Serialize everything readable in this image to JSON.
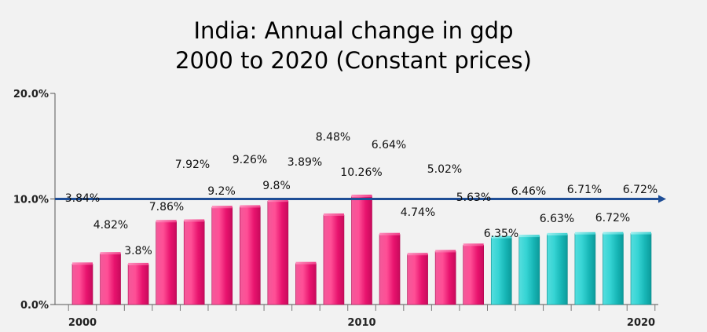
{
  "chart_data": {
    "type": "bar",
    "title": "India: Annual change in gdp",
    "subtitle": "2000 to 2020 (Constant prices)",
    "xlabel": "",
    "ylabel": "",
    "x": [
      2000,
      2001,
      2002,
      2003,
      2004,
      2005,
      2006,
      2007,
      2008,
      2009,
      2010,
      2011,
      2012,
      2013,
      2014,
      2015,
      2016,
      2017,
      2018,
      2019,
      2020
    ],
    "values": [
      3.84,
      4.82,
      3.8,
      7.86,
      7.92,
      9.2,
      9.26,
      9.8,
      3.89,
      8.48,
      10.26,
      6.64,
      4.74,
      5.02,
      5.63,
      6.35,
      6.46,
      6.63,
      6.71,
      6.72,
      6.72
    ],
    "labels": [
      "3.84%",
      "4.82%",
      "3.8%",
      "7.86%",
      "7.92%",
      "9.2%",
      "9.26%",
      "9.8%",
      "3.89%",
      "8.48%",
      "10.26%",
      "6.64%",
      "4.74%",
      "5.02%",
      "5.63%",
      "6.35%",
      "6.46%",
      "6.63%",
      "6.71%",
      "6.72%",
      "6.72%"
    ],
    "projected_from": 2015,
    "ylim": [
      0,
      20
    ],
    "y_ticks": [
      0,
      10,
      20
    ],
    "y_tick_labels": [
      "0.0%",
      "10.0%",
      "20.0%"
    ],
    "x_tick_labels": [
      {
        "x": 2000,
        "label": "2000"
      },
      {
        "x": 2010,
        "label": "2010"
      },
      {
        "x": 2020,
        "label": "2020"
      }
    ],
    "reference_line": {
      "value": 10.0,
      "color": "#1f4e96"
    },
    "colors": {
      "actual": "#e8136e",
      "projected": "#1fc4c4"
    },
    "legend": "none",
    "grid": false
  }
}
